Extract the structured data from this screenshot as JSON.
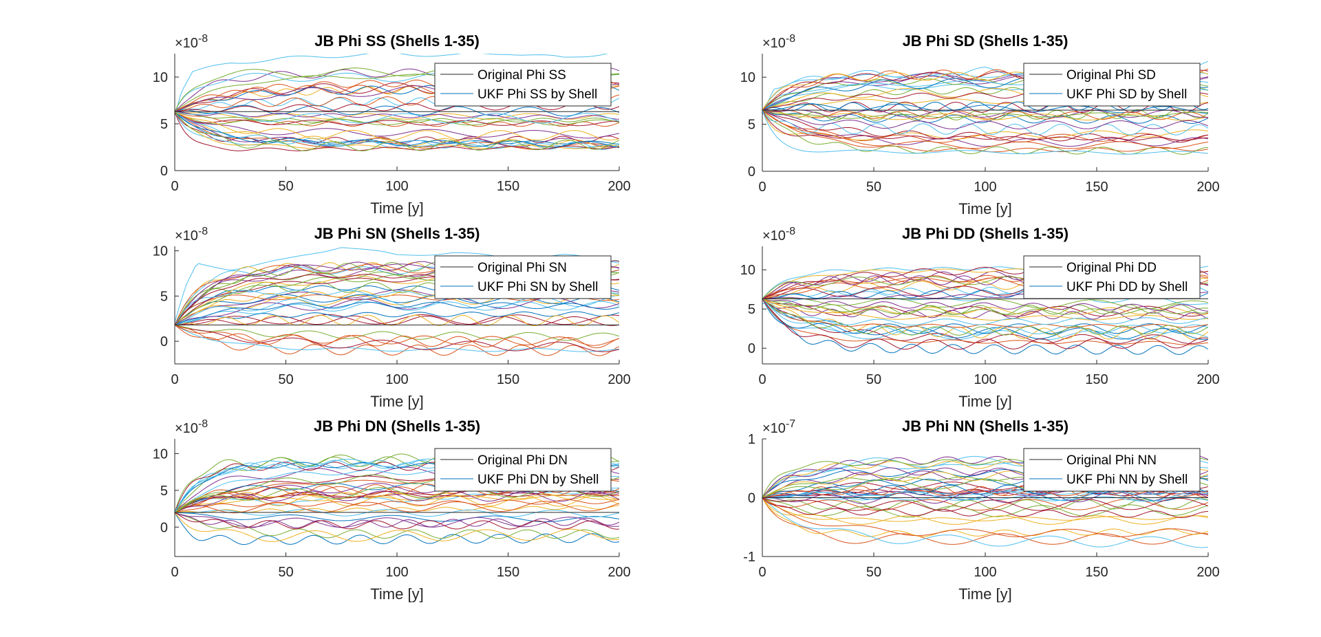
{
  "chart_data": [
    {
      "type": "line",
      "title": "JB Phi SS (Shells 1-35)",
      "xlabel": "Time [y]",
      "ylabel": "",
      "xlim": [
        0,
        200
      ],
      "ylim": [
        0,
        12.5
      ],
      "xticks": [
        "0",
        "50",
        "100",
        "150",
        "200"
      ],
      "yticks": [
        "0",
        "5",
        "10"
      ],
      "exponent_label": "×10",
      "exponent": "-8",
      "legend": [
        "Original Phi SS",
        "UKF Phi SS by Shell"
      ],
      "legend_position": "top-right",
      "series_count": 35,
      "series": [
        {
          "name": "Original Phi SS",
          "x": [
            0,
            200
          ],
          "values": [
            6.3,
            6.3
          ]
        },
        {
          "name": "UKF Phi SS by Shell",
          "x": [
            0,
            3,
            8,
            25,
            50,
            75,
            100,
            125,
            150,
            175,
            200
          ],
          "values": [
            6.0,
            8.5,
            10.5,
            11.5,
            12.0,
            12.3,
            12.5,
            12.3,
            12.6,
            12.0,
            12.8
          ]
        }
      ]
    },
    {
      "type": "line",
      "title": "JB Phi SD (Shells 1-35)",
      "xlabel": "Time [y]",
      "ylabel": "",
      "xlim": [
        0,
        200
      ],
      "ylim": [
        0,
        12.5
      ],
      "xticks": [
        "0",
        "50",
        "100",
        "150",
        "200"
      ],
      "yticks": [
        "0",
        "5",
        "10"
      ],
      "exponent_label": "×10",
      "exponent": "-8",
      "legend": [
        "Original Phi SD",
        "UKF Phi SD by Shell"
      ],
      "legend_position": "top-right",
      "series_count": 35,
      "series": [
        {
          "name": "Original Phi SD",
          "x": [
            0,
            200
          ],
          "values": [
            6.5,
            6.5
          ]
        },
        {
          "name": "UKF Phi SD by Shell",
          "x": [
            0,
            5,
            25,
            50,
            75,
            100,
            125,
            150,
            175,
            200
          ],
          "values": [
            6.0,
            9.0,
            10.0,
            10.5,
            10.0,
            10.8,
            10.2,
            11.0,
            10.5,
            11.5
          ]
        }
      ]
    },
    {
      "type": "line",
      "title": "JB Phi SN (Shells 1-35)",
      "xlabel": "Time [y]",
      "ylabel": "",
      "xlim": [
        0,
        200
      ],
      "ylim": [
        -2.5,
        10.5
      ],
      "xticks": [
        "0",
        "50",
        "100",
        "150",
        "200"
      ],
      "yticks": [
        "0",
        "5",
        "10"
      ],
      "exponent_label": "×10",
      "exponent": "-8",
      "legend": [
        "Original Phi SN",
        "UKF Phi SN by Shell"
      ],
      "legend_position": "top-right",
      "series_count": 35,
      "series": [
        {
          "name": "Original Phi SN",
          "x": [
            0,
            200
          ],
          "values": [
            1.8,
            1.8
          ]
        },
        {
          "name": "UKF Phi SN by Shell",
          "x": [
            0,
            5,
            10,
            25,
            50,
            75,
            100,
            125,
            150,
            175,
            200
          ],
          "values": [
            2.0,
            6.0,
            8.5,
            8.0,
            9.0,
            10.5,
            9.5,
            9.8,
            9.2,
            9.5,
            8.8
          ]
        }
      ]
    },
    {
      "type": "line",
      "title": "JB Phi DD (Shells 1-35)",
      "xlabel": "Time [y]",
      "ylabel": "",
      "xlim": [
        0,
        200
      ],
      "ylim": [
        -2.0,
        13.0
      ],
      "xticks": [
        "0",
        "50",
        "100",
        "150",
        "200"
      ],
      "yticks": [
        "0",
        "5",
        "10"
      ],
      "exponent_label": "×10",
      "exponent": "-8",
      "legend": [
        "Original Phi DD",
        "UKF Phi DD by Shell"
      ],
      "legend_position": "top-right",
      "series_count": 35,
      "series": [
        {
          "name": "Original Phi DD",
          "x": [
            0,
            200
          ],
          "values": [
            6.3,
            6.3
          ]
        },
        {
          "name": "UKF Phi DD by Shell",
          "x": [
            0,
            10,
            25,
            50,
            75,
            100,
            125,
            150,
            175,
            200
          ],
          "values": [
            6.0,
            5.5,
            6.5,
            7.0,
            6.0,
            6.5,
            7.0,
            6.0,
            6.5,
            5.5
          ]
        }
      ]
    },
    {
      "type": "line",
      "title": "JB Phi DN (Shells 1-35)",
      "xlabel": "Time [y]",
      "ylabel": "",
      "xlim": [
        0,
        200
      ],
      "ylim": [
        -4.0,
        12.0
      ],
      "xticks": [
        "0",
        "50",
        "100",
        "150",
        "200"
      ],
      "yticks": [
        "0",
        "5",
        "10"
      ],
      "exponent_label": "×10",
      "exponent": "-8",
      "legend": [
        "Original Phi DN",
        "UKF Phi DN by Shell"
      ],
      "legend_position": "top-right",
      "series_count": 35,
      "series": [
        {
          "name": "Original Phi DN",
          "x": [
            0,
            200
          ],
          "values": [
            2.0,
            2.0
          ]
        },
        {
          "name": "UKF Phi DN by Shell",
          "x": [
            0,
            10,
            25,
            50,
            75,
            100,
            125,
            150,
            175,
            200
          ],
          "values": [
            2.0,
            3.5,
            4.0,
            3.0,
            4.5,
            3.5,
            4.0,
            5.0,
            4.5,
            5.5
          ]
        }
      ]
    },
    {
      "type": "line",
      "title": "JB Phi NN (Shells 1-35)",
      "xlabel": "Time [y]",
      "ylabel": "",
      "xlim": [
        0,
        200
      ],
      "ylim": [
        -1.0,
        1.0
      ],
      "xticks": [
        "0",
        "50",
        "100",
        "150",
        "200"
      ],
      "yticks": [
        "-1",
        "0",
        "1"
      ],
      "exponent_label": "×10",
      "exponent": "-7",
      "legend": [
        "Original Phi NN",
        "UKF Phi NN by Shell"
      ],
      "legend_position": "top-right",
      "series_count": 35,
      "series": [
        {
          "name": "Original Phi NN",
          "x": [
            0,
            200
          ],
          "values": [
            0.0,
            0.0
          ]
        },
        {
          "name": "UKF Phi NN by Shell",
          "x": [
            0,
            10,
            25,
            50,
            75,
            100,
            125,
            150,
            175,
            200
          ],
          "values": [
            0.0,
            0.3,
            0.45,
            0.55,
            0.5,
            0.6,
            0.55,
            0.5,
            0.45,
            0.5
          ]
        }
      ]
    }
  ],
  "colors": [
    "#0072BD",
    "#D95319",
    "#EDB120",
    "#7E2F8E",
    "#77AC30",
    "#4DBEEE",
    "#A2142F"
  ],
  "original_line_color": "#262626"
}
